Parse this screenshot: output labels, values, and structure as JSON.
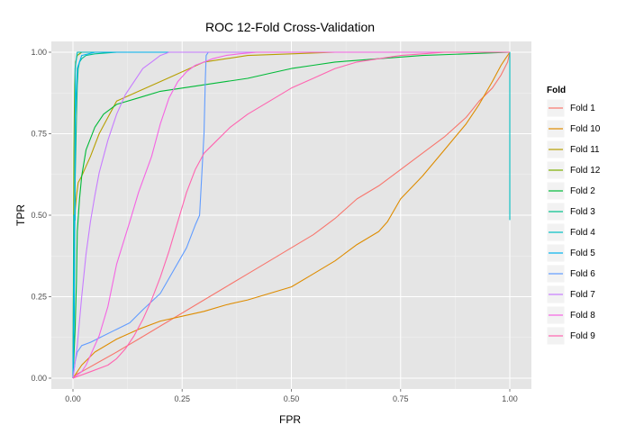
{
  "chart_data": {
    "type": "line",
    "title": "ROC 12-Fold Cross-Validation",
    "xlabel": "FPR",
    "ylabel": "TPR",
    "xlim": [
      0,
      1
    ],
    "ylim": [
      0,
      1
    ],
    "xticks": [
      0,
      0.25,
      0.5,
      0.75,
      1
    ],
    "yticks": [
      0,
      0.25,
      0.5,
      0.75,
      1
    ],
    "xtick_labels": [
      "0.00",
      "0.25",
      "0.50",
      "0.75",
      "1.00"
    ],
    "ytick_labels": [
      "0.00",
      "0.25",
      "0.50",
      "0.75",
      "1.00"
    ],
    "grid": true,
    "legend_title": "Fold",
    "legend_position": "right",
    "series": [
      {
        "name": "Fold 1",
        "color": "#F8766D",
        "x": [
          0,
          0.005,
          0.005,
          0.02,
          0.06,
          0.1,
          0.15,
          0.2,
          0.25,
          0.3,
          0.35,
          0.4,
          0.45,
          0.5,
          0.55,
          0.6,
          0.65,
          0.7,
          0.75,
          0.8,
          0.85,
          0.9,
          0.93,
          0.96,
          0.98,
          0.995,
          1.0
        ],
        "y": [
          0,
          0.005,
          0.01,
          0.02,
          0.05,
          0.08,
          0.12,
          0.16,
          0.2,
          0.24,
          0.28,
          0.32,
          0.36,
          0.4,
          0.44,
          0.49,
          0.55,
          0.59,
          0.64,
          0.69,
          0.74,
          0.8,
          0.85,
          0.89,
          0.93,
          0.97,
          1.0
        ]
      },
      {
        "name": "Fold 10",
        "color": "#DE8C00",
        "x": [
          0,
          0.02,
          0.05,
          0.1,
          0.15,
          0.2,
          0.25,
          0.3,
          0.35,
          0.4,
          0.45,
          0.5,
          0.55,
          0.6,
          0.65,
          0.7,
          0.72,
          0.75,
          0.8,
          0.85,
          0.9,
          0.93,
          0.96,
          0.98,
          0.99,
          1.0
        ],
        "y": [
          0,
          0.04,
          0.08,
          0.12,
          0.15,
          0.175,
          0.19,
          0.205,
          0.225,
          0.24,
          0.26,
          0.28,
          0.32,
          0.36,
          0.41,
          0.45,
          0.48,
          0.55,
          0.62,
          0.7,
          0.78,
          0.84,
          0.91,
          0.96,
          0.98,
          1.0
        ]
      },
      {
        "name": "Fold 11",
        "color": "#B79F00",
        "x": [
          0,
          0.003,
          0.004,
          0.008,
          0.012,
          0.02,
          0.03,
          0.04,
          0.06,
          0.08,
          0.1,
          0.15,
          0.2,
          0.25,
          0.3,
          0.4,
          0.5,
          0.6,
          0.7,
          0.8,
          1.0
        ],
        "y": [
          0,
          0.4,
          0.5,
          0.56,
          0.6,
          0.62,
          0.65,
          0.68,
          0.75,
          0.8,
          0.85,
          0.88,
          0.91,
          0.94,
          0.97,
          0.99,
          0.995,
          1.0,
          1.0,
          1.0,
          1.0
        ],
        "note_color_match": true
      },
      {
        "name": "Fold 12",
        "color": "#7CAE00",
        "x": [
          0,
          0.002,
          0.004,
          0.006,
          0.01,
          0.02,
          0.05,
          0.1,
          0.3,
          0.6,
          1.0
        ],
        "y": [
          0,
          0.7,
          0.9,
          0.97,
          0.99,
          1.0,
          1.0,
          1.0,
          1.0,
          1.0,
          1.0
        ]
      },
      {
        "name": "Fold 2",
        "color": "#00BA38",
        "x": [
          0,
          0.005,
          0.008,
          0.01,
          0.015,
          0.02,
          0.03,
          0.05,
          0.07,
          0.1,
          0.15,
          0.2,
          0.25,
          0.3,
          0.35,
          0.4,
          0.45,
          0.5,
          0.55,
          0.6,
          0.65,
          0.7,
          0.8,
          0.9,
          1.0
        ],
        "y": [
          0,
          0.15,
          0.3,
          0.45,
          0.55,
          0.62,
          0.7,
          0.77,
          0.81,
          0.84,
          0.86,
          0.88,
          0.89,
          0.9,
          0.91,
          0.92,
          0.935,
          0.95,
          0.96,
          0.97,
          0.975,
          0.98,
          0.99,
          0.995,
          1.0
        ]
      },
      {
        "name": "Fold 3",
        "color": "#00C08B",
        "x": [
          0,
          0.003,
          0.005,
          0.008,
          0.01,
          0.012,
          0.015,
          0.02,
          0.03,
          0.05,
          0.1,
          0.3,
          0.6,
          1.0
        ],
        "y": [
          0,
          0.3,
          0.6,
          0.8,
          0.9,
          0.95,
          0.97,
          0.98,
          0.99,
          0.995,
          1.0,
          1.0,
          1.0,
          1.0
        ]
      },
      {
        "name": "Fold 4",
        "color": "#00BFC4",
        "x": [
          0,
          0.002,
          0.003,
          0.005,
          0.005,
          0.01,
          0.02,
          1.0,
          1.0
        ],
        "y": [
          0,
          0.5,
          0.485,
          0.485,
          0.95,
          1.0,
          1.0,
          1.0,
          0.485
        ]
      },
      {
        "name": "Fold 5",
        "color": "#00B4F0",
        "x": [
          0,
          0.003,
          0.004,
          0.005,
          0.01,
          0.02,
          0.05,
          0.1,
          0.3,
          0.6,
          1.0
        ],
        "y": [
          0,
          0.2,
          0.5,
          0.8,
          0.95,
          0.99,
          1.0,
          1.0,
          1.0,
          1.0,
          1.0
        ]
      },
      {
        "name": "Fold 6",
        "color": "#619CFF",
        "x": [
          0,
          0.005,
          0.01,
          0.02,
          0.04,
          0.07,
          0.1,
          0.13,
          0.16,
          0.2,
          0.23,
          0.26,
          0.28,
          0.29,
          0.3,
          0.303,
          0.305,
          0.31,
          0.33,
          0.4,
          0.6,
          0.8,
          1.0
        ],
        "y": [
          0,
          0.05,
          0.08,
          0.1,
          0.11,
          0.13,
          0.15,
          0.17,
          0.21,
          0.26,
          0.33,
          0.4,
          0.47,
          0.5,
          0.75,
          0.92,
          0.99,
          1.0,
          1.0,
          1.0,
          1.0,
          1.0,
          1.0
        ]
      },
      {
        "name": "Fold 7",
        "color": "#C77CFF",
        "x": [
          0,
          0.01,
          0.02,
          0.03,
          0.04,
          0.05,
          0.06,
          0.08,
          0.1,
          0.12,
          0.14,
          0.16,
          0.18,
          0.2,
          0.22,
          0.25,
          0.3,
          0.4,
          0.6,
          0.8,
          1.0
        ],
        "y": [
          0,
          0.1,
          0.25,
          0.38,
          0.48,
          0.56,
          0.63,
          0.73,
          0.81,
          0.87,
          0.91,
          0.95,
          0.97,
          0.99,
          1.0,
          1.0,
          1.0,
          1.0,
          1.0,
          1.0,
          1.0
        ]
      },
      {
        "name": "Fold 8",
        "color": "#F564E3",
        "x": [
          0,
          0.01,
          0.02,
          0.03,
          0.04,
          0.06,
          0.08,
          0.1,
          0.13,
          0.15,
          0.18,
          0.2,
          0.22,
          0.24,
          0.26,
          0.28,
          0.3,
          0.32,
          0.35,
          0.38,
          0.42,
          0.46,
          0.5,
          0.55,
          0.6,
          0.65,
          0.7,
          0.75,
          0.8,
          0.85,
          0.9,
          0.95,
          1.0
        ],
        "y": [
          0,
          0.01,
          0.02,
          0.04,
          0.07,
          0.13,
          0.22,
          0.35,
          0.48,
          0.57,
          0.68,
          0.78,
          0.86,
          0.91,
          0.94,
          0.96,
          0.97,
          0.98,
          0.99,
          0.995,
          1.0,
          1.0,
          1.0,
          1.0,
          1.0,
          1.0,
          1.0,
          1.0,
          1.0,
          1.0,
          1.0,
          1.0,
          1.0
        ]
      },
      {
        "name": "Fold 9",
        "color": "#FF64B0",
        "x": [
          0,
          0.04,
          0.08,
          0.1,
          0.12,
          0.14,
          0.16,
          0.18,
          0.2,
          0.22,
          0.24,
          0.26,
          0.28,
          0.3,
          0.33,
          0.36,
          0.4,
          0.45,
          0.5,
          0.55,
          0.6,
          0.65,
          0.7,
          0.75,
          0.8,
          0.85,
          0.9,
          0.95,
          1.0
        ],
        "y": [
          0,
          0.02,
          0.04,
          0.06,
          0.09,
          0.13,
          0.18,
          0.24,
          0.31,
          0.39,
          0.48,
          0.57,
          0.64,
          0.69,
          0.73,
          0.77,
          0.81,
          0.85,
          0.89,
          0.92,
          0.95,
          0.97,
          0.98,
          0.99,
          0.995,
          1.0,
          1.0,
          1.0,
          1.0
        ]
      }
    ]
  }
}
